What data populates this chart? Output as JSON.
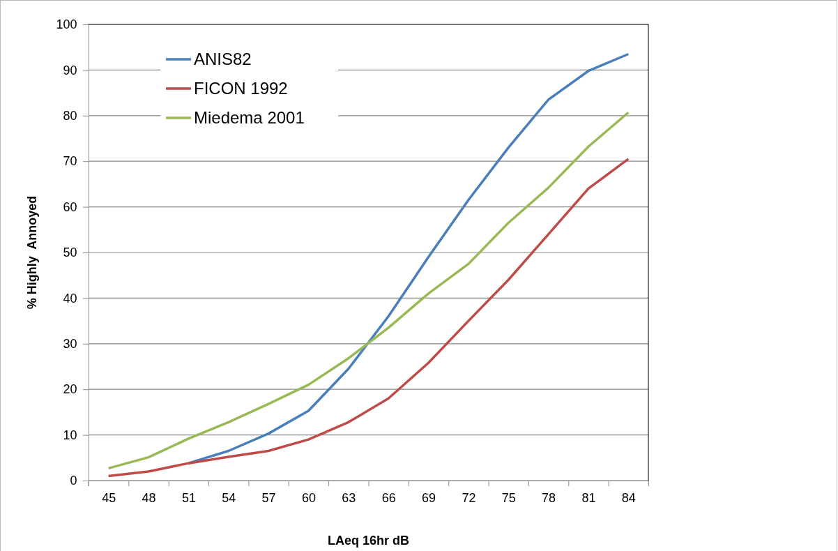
{
  "chart_data": {
    "type": "line",
    "xlabel": "LAeq 16hr dB",
    "ylabel": "% Highly  Annoyed",
    "categories": [
      "45",
      "48",
      "51",
      "54",
      "57",
      "60",
      "63",
      "66",
      "69",
      "72",
      "75",
      "78",
      "81",
      "84"
    ],
    "series": [
      {
        "name": "ANIS82",
        "color": "#4a7ebb",
        "values": [
          null,
          null,
          3.8,
          6.5,
          10.3,
          15.3,
          24.5,
          36,
          49,
          61.5,
          73,
          83.5,
          89.8,
          93.5
        ]
      },
      {
        "name": "FICON 1992",
        "color": "#be4b48",
        "values": [
          1,
          2,
          3.8,
          5.2,
          6.5,
          9,
          12.8,
          18,
          25.8,
          35,
          44,
          54,
          64,
          70.5
        ]
      },
      {
        "name": "Miedema 2001",
        "color": "#98b954",
        "values": [
          2.7,
          5.1,
          9.2,
          12.8,
          16.8,
          21,
          26.8,
          33.5,
          41,
          47.5,
          56.5,
          64.2,
          73.2,
          80.7
        ]
      }
    ],
    "ylim": [
      0,
      100
    ],
    "yticks": [
      0,
      10,
      20,
      30,
      40,
      50,
      60,
      70,
      80,
      90,
      100
    ],
    "grid": "y",
    "legend": "top left",
    "marker": "none",
    "line_style": "solid"
  }
}
